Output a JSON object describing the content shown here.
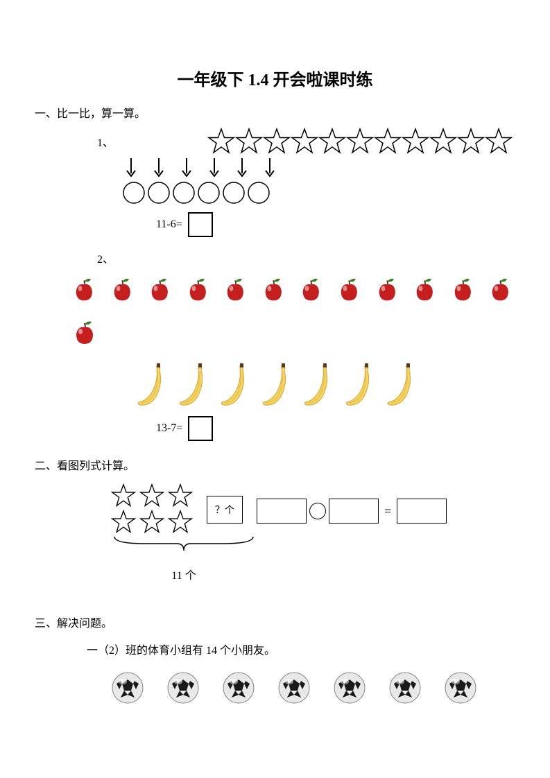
{
  "title": "一年级下 1.4 开会啦课时练",
  "section1": {
    "header": "一、比一比，算一算。",
    "problem1": {
      "number": "1、",
      "stars_count": 11,
      "arrows_count": 6,
      "circles_count": 6,
      "equation": "11-6="
    },
    "problem2": {
      "number": "2、",
      "apples_row1": 12,
      "apples_row2": 1,
      "bananas_count": 7,
      "equation": "13-7="
    }
  },
  "section2": {
    "header": "二、看图列式计算。",
    "stars_rows": 2,
    "stars_cols": 3,
    "question_text": "？个",
    "total_label": "11 个",
    "eq_sign": "="
  },
  "section3": {
    "header": "三、解决问题。",
    "text": "一（2）班的体育小组有 14 个小朋友。",
    "balls_count": 7
  },
  "colors": {
    "apple_red": "#c41e1e",
    "apple_leaf": "#3a7d1f",
    "banana_yellow": "#f4d35e",
    "banana_shadow": "#d4a83e",
    "ball_white": "#e8e8e8",
    "ball_black": "#1a1a1a"
  }
}
